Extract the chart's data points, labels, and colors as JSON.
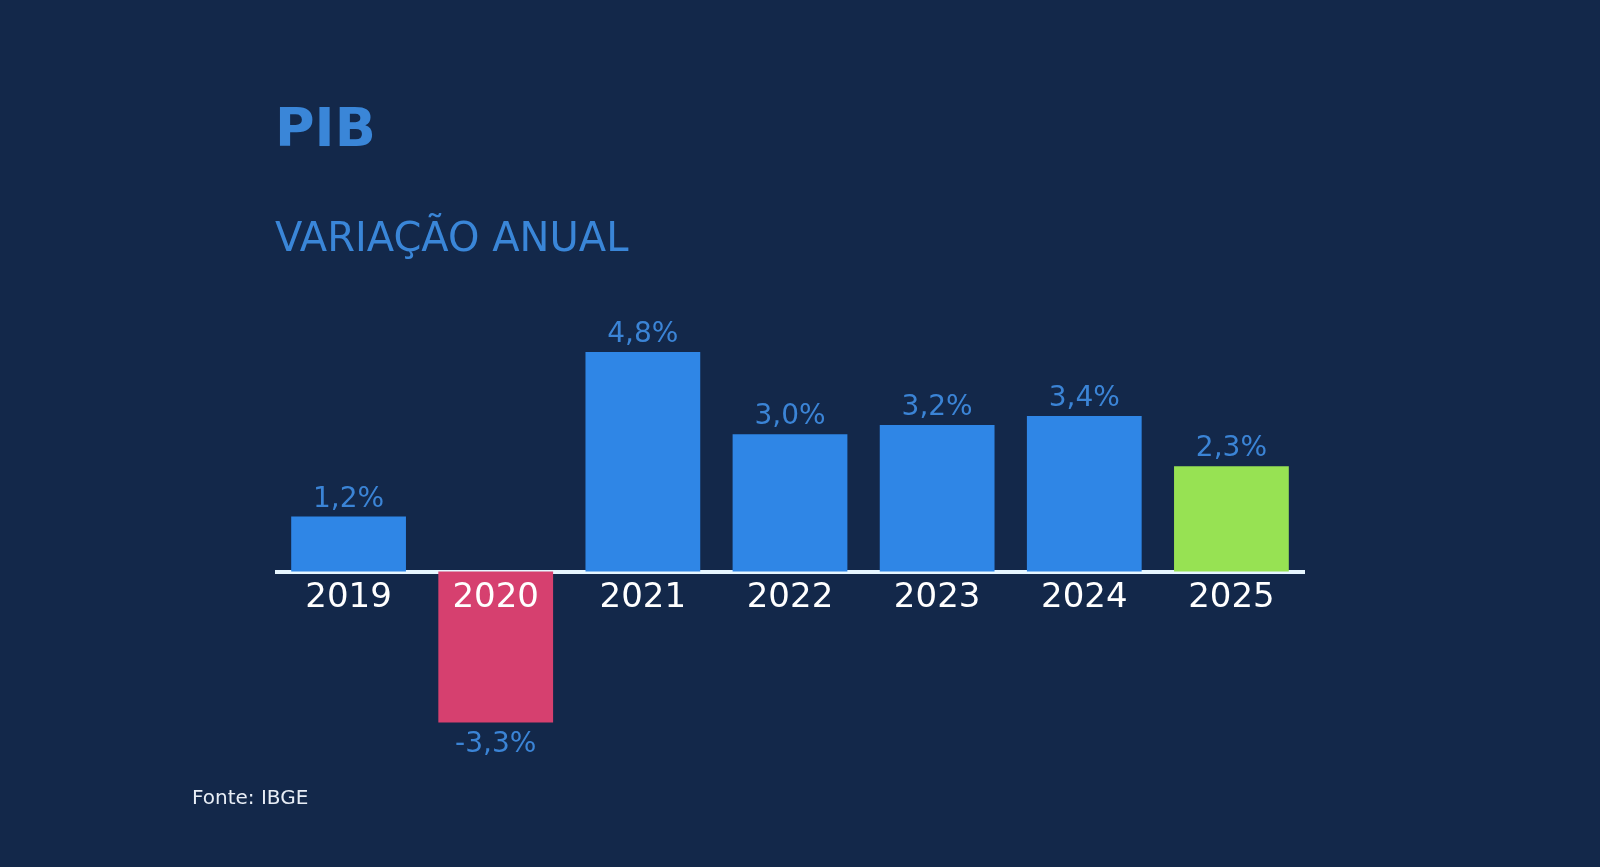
{
  "chart_data": {
    "type": "bar",
    "title": "PIB",
    "subtitle": "VARIAÇÃO ANUAL",
    "categories": [
      "2019",
      "2020",
      "2021",
      "2022",
      "2023",
      "2024",
      "2025"
    ],
    "values": [
      1.2,
      -3.3,
      4.8,
      3.0,
      3.2,
      3.4,
      2.3
    ],
    "colors": [
      "#2f86e6",
      "#d6406f",
      "#2f86e6",
      "#2f86e6",
      "#2f86e6",
      "#2f86e6",
      "#97e253"
    ],
    "value_labels": [
      "1,2%",
      "-3,3%",
      "4,8%",
      "3,0%",
      "3,2%",
      "3,4%",
      "2,3%"
    ],
    "annotations": [
      "Fonte: IBGE"
    ]
  }
}
